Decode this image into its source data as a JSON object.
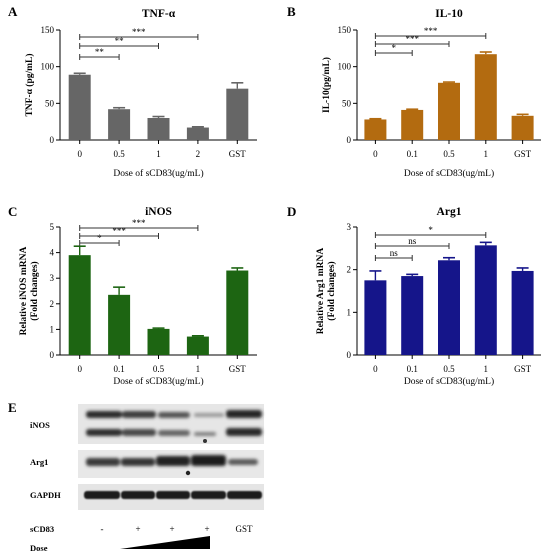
{
  "chart_data": [
    {
      "type": "bar",
      "panel": "A",
      "title": "TNF-α",
      "ylabel": "TNF-α (pg/mL)",
      "xlabel": "Dose of sCD83(ug/mL)",
      "categories": [
        "0",
        "0.5",
        "1",
        "2",
        "GST"
      ],
      "values": [
        89,
        42,
        30,
        17,
        70
      ],
      "errors": [
        2,
        2,
        2,
        1,
        8
      ],
      "ylim": [
        0,
        150
      ],
      "yticks": [
        "0",
        "50",
        "100",
        "150"
      ],
      "color": "#666666",
      "significance": [
        {
          "from": 0,
          "to": 1,
          "label": "**"
        },
        {
          "from": 0,
          "to": 2,
          "label": "**"
        },
        {
          "from": 0,
          "to": 3,
          "label": "***"
        }
      ]
    },
    {
      "type": "bar",
      "panel": "B",
      "title": "IL-10",
      "ylabel": "IL-10(pg/mL)",
      "xlabel": "Dose of sCD83(ug/mL)",
      "categories": [
        "0",
        "0.1",
        "0.5",
        "1",
        "GST"
      ],
      "values": [
        28,
        41,
        78,
        117,
        33
      ],
      "errors": [
        1,
        1,
        1,
        3,
        2
      ],
      "ylim": [
        0,
        150
      ],
      "yticks": [
        "0",
        "50",
        "100",
        "150"
      ],
      "color": "#b36b10",
      "significance": [
        {
          "from": 0,
          "to": 1,
          "label": "*"
        },
        {
          "from": 0,
          "to": 2,
          "label": "***"
        },
        {
          "from": 0,
          "to": 3,
          "label": "***"
        }
      ]
    },
    {
      "type": "bar",
      "panel": "C",
      "title": "iNOS",
      "ylabel": "Relative iNOS mRNA",
      "ylabel2": "(Fold changes)",
      "xlabel": "Dose of sCD83(ug/mL)",
      "categories": [
        "0",
        "0.1",
        "0.5",
        "1",
        "GST"
      ],
      "values": [
        3.9,
        2.35,
        1.02,
        0.72,
        3.3
      ],
      "errors": [
        0.35,
        0.3,
        0.03,
        0.03,
        0.1
      ],
      "ylim": [
        0,
        5
      ],
      "yticks": [
        "0",
        "1",
        "2",
        "3",
        "4",
        "5"
      ],
      "color": "#1d6512",
      "significance": [
        {
          "from": 0,
          "to": 1,
          "label": "*"
        },
        {
          "from": 0,
          "to": 2,
          "label": "***"
        },
        {
          "from": 0,
          "to": 3,
          "label": "***"
        }
      ]
    },
    {
      "type": "bar",
      "panel": "D",
      "title": "Arg1",
      "ylabel": "Relative Arg1 mRNA",
      "ylabel2": "(Fold changes)",
      "xlabel": "Dose of sCD83(ug/mL)",
      "categories": [
        "0",
        "0.1",
        "0.5",
        "1",
        "GST"
      ],
      "values": [
        1.75,
        1.85,
        2.22,
        2.57,
        1.97
      ],
      "errors": [
        0.22,
        0.04,
        0.06,
        0.07,
        0.07
      ],
      "ylim": [
        0,
        3
      ],
      "yticks": [
        "0",
        "1",
        "2",
        "3"
      ],
      "color": "#15158a",
      "significance": [
        {
          "from": 0,
          "to": 1,
          "label": "ns"
        },
        {
          "from": 0,
          "to": 2,
          "label": "ns"
        },
        {
          "from": 0,
          "to": 3,
          "label": "*"
        }
      ]
    }
  ],
  "blot": {
    "panel": "E",
    "rows": [
      "iNOS",
      "Arg1",
      "GAPDH"
    ],
    "row_label": "sCD83",
    "conditions": [
      "-",
      "+",
      "+",
      "+",
      "GST"
    ],
    "dose_label": "Dose"
  }
}
